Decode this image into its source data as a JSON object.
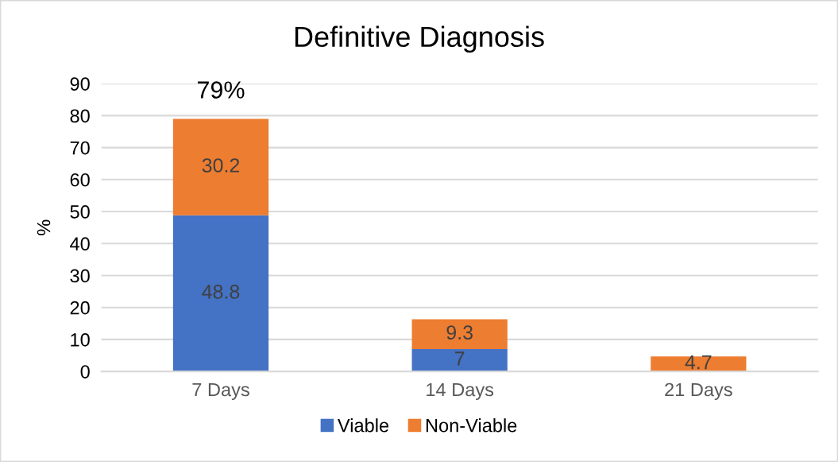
{
  "chart_data": {
    "type": "bar",
    "title": "Definitive Diagnosis",
    "ylabel": "%",
    "categories": [
      "7 Days",
      "14 Days",
      "21 Days"
    ],
    "series": [
      {
        "name": "Viable",
        "color": "#4472c4",
        "values": [
          48.8,
          7,
          null
        ]
      },
      {
        "name": "Non-Viable",
        "color": "#ed7d31",
        "values": [
          30.2,
          9.3,
          4.7
        ]
      }
    ],
    "stacked": true,
    "data_labels": true,
    "totals": [
      "79%",
      null,
      null
    ],
    "ylim": [
      0,
      90
    ],
    "yticks": [
      0,
      10,
      20,
      30,
      40,
      50,
      60,
      70,
      80,
      90
    ],
    "grid": "y",
    "legend": "bottom"
  }
}
